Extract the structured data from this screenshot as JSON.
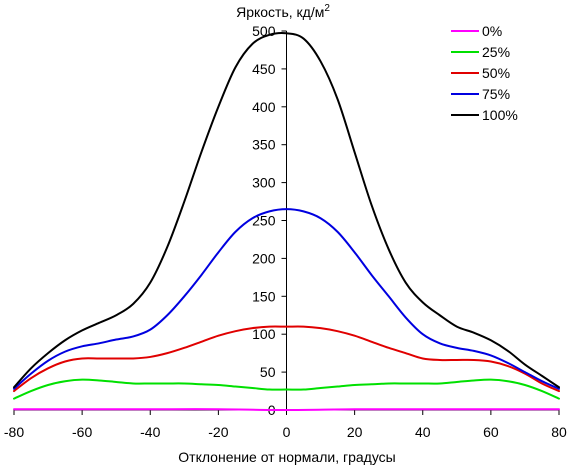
{
  "chart_data": {
    "type": "line",
    "ylabel": "Яркость, кд/м",
    "ylabel_sup": "2",
    "xlabel": "Отклонение от нормали, градусы",
    "xlim": [
      -80,
      80
    ],
    "ylim": [
      0,
      500
    ],
    "x_ticks": [
      -80,
      -60,
      -40,
      -20,
      0,
      20,
      40,
      60,
      80
    ],
    "y_ticks": [
      0,
      50,
      100,
      150,
      200,
      250,
      300,
      350,
      400,
      450,
      500
    ],
    "legend_position": "top-right",
    "grid": false,
    "series": [
      {
        "name": "0%",
        "color": "#ff00ff",
        "x": [
          -80,
          -60,
          -40,
          -20,
          0,
          20,
          40,
          60,
          80
        ],
        "y": [
          1,
          1,
          1,
          1,
          0,
          1,
          1,
          1,
          1
        ]
      },
      {
        "name": "25%",
        "color": "#00e000",
        "x": [
          -80,
          -75,
          -70,
          -65,
          -60,
          -55,
          -50,
          -45,
          -40,
          -35,
          -30,
          -25,
          -20,
          -15,
          -10,
          -5,
          0,
          5,
          10,
          15,
          20,
          25,
          30,
          35,
          40,
          45,
          50,
          55,
          60,
          65,
          70,
          75,
          80
        ],
        "y": [
          15,
          25,
          33,
          38,
          40,
          39,
          37,
          35,
          35,
          35,
          35,
          34,
          33,
          31,
          29,
          27,
          27,
          27,
          29,
          31,
          33,
          34,
          35,
          35,
          35,
          35,
          37,
          39,
          40,
          38,
          33,
          25,
          15
        ]
      },
      {
        "name": "50%",
        "color": "#e00000",
        "x": [
          -80,
          -75,
          -70,
          -65,
          -60,
          -55,
          -50,
          -45,
          -40,
          -35,
          -30,
          -25,
          -20,
          -15,
          -10,
          -5,
          0,
          5,
          10,
          15,
          20,
          25,
          30,
          35,
          40,
          45,
          50,
          55,
          60,
          65,
          70,
          75,
          80
        ],
        "y": [
          25,
          42,
          55,
          64,
          68,
          68,
          68,
          68,
          70,
          75,
          82,
          90,
          98,
          104,
          108,
          110,
          110,
          110,
          108,
          104,
          98,
          90,
          82,
          75,
          68,
          66,
          66,
          66,
          64,
          58,
          48,
          35,
          25
        ]
      },
      {
        "name": "75%",
        "color": "#0000e0",
        "x": [
          -80,
          -75,
          -70,
          -65,
          -60,
          -55,
          -50,
          -45,
          -40,
          -35,
          -30,
          -25,
          -20,
          -15,
          -10,
          -5,
          0,
          5,
          10,
          15,
          20,
          25,
          30,
          35,
          40,
          45,
          50,
          55,
          60,
          65,
          70,
          75,
          80
        ],
        "y": [
          28,
          48,
          65,
          77,
          84,
          88,
          93,
          97,
          106,
          125,
          150,
          178,
          208,
          235,
          253,
          262,
          265,
          262,
          253,
          235,
          208,
          178,
          150,
          122,
          100,
          88,
          82,
          78,
          72,
          62,
          50,
          38,
          28
        ]
      },
      {
        "name": "100%",
        "color": "#000000",
        "x": [
          -80,
          -75,
          -70,
          -65,
          -60,
          -55,
          -50,
          -45,
          -40,
          -35,
          -30,
          -25,
          -20,
          -15,
          -10,
          -5,
          0,
          5,
          10,
          15,
          20,
          25,
          30,
          35,
          40,
          45,
          50,
          55,
          60,
          65,
          70,
          75,
          80
        ],
        "y": [
          30,
          55,
          75,
          92,
          105,
          115,
          125,
          140,
          168,
          215,
          275,
          340,
          400,
          452,
          483,
          495,
          497,
          490,
          460,
          410,
          340,
          270,
          212,
          168,
          142,
          125,
          110,
          102,
          92,
          78,
          60,
          45,
          30
        ]
      }
    ]
  }
}
